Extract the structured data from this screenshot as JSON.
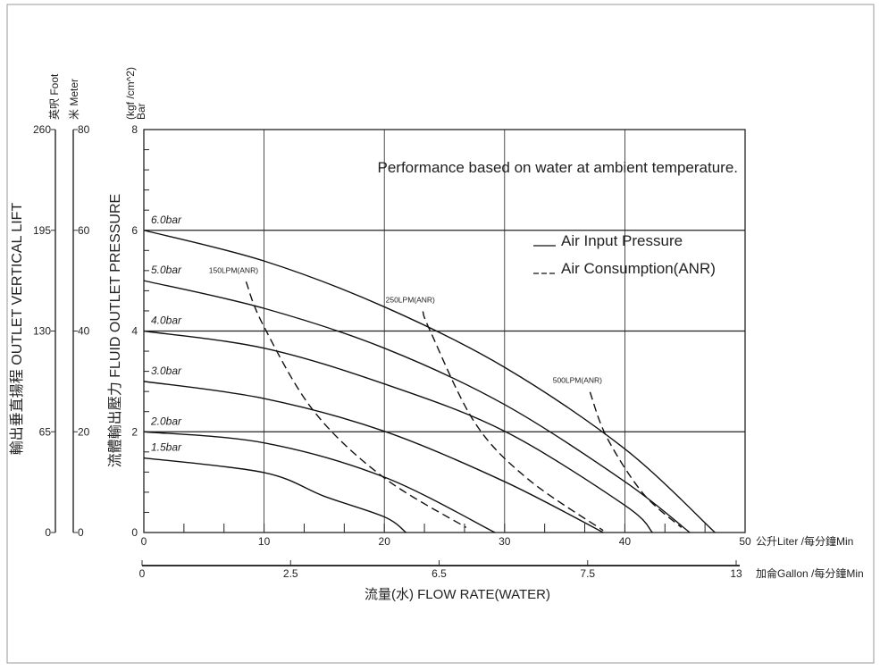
{
  "chart_data": {
    "type": "line",
    "note_text": "Performance based on water at ambient temperature.",
    "y_axis": {
      "label": "流體輸出壓力  FLUID OUTLET PRESSURE",
      "unit_top": "(kgf /cm^2)",
      "unit_bottom": "Bar",
      "range": [
        0,
        8
      ],
      "tick_labels": [
        "0",
        "2",
        "4",
        "6",
        "8"
      ],
      "minor_step": 0.4
    },
    "lift_axis": {
      "label": "輸出垂直揚程   OUTLET VERTICAL LIFT",
      "foot_unit": "英呎 Foot",
      "meter_unit": "米 Meter",
      "foot_ticks": [
        "0",
        "65",
        "130",
        "195",
        "260"
      ],
      "meter_ticks": [
        "0",
        "20",
        "40",
        "60",
        "80"
      ]
    },
    "x_axis": {
      "unit": "公升Liter /每分鐘Min",
      "range": [
        0,
        50
      ],
      "tick_labels": [
        "0",
        "10",
        "20",
        "30",
        "40",
        "50"
      ]
    },
    "gallon_axis": {
      "unit": "加侖Gallon /每分鐘Min",
      "tick_labels": [
        "0",
        "2.5",
        "6.5",
        "7.5",
        "13"
      ]
    },
    "xlabel": "流量(水) FLOW RATE(WATER)",
    "grid": true,
    "legend": {
      "placement": "top-right",
      "items": [
        {
          "name": "Air Input Pressure",
          "style": "solid"
        },
        {
          "name": "Air Consumption(ANR)",
          "style": "dashed"
        }
      ]
    },
    "series": [
      {
        "name": "6.0bar",
        "style": "solid",
        "points": [
          [
            0,
            6.0
          ],
          [
            10,
            5.39
          ],
          [
            20,
            4.48
          ],
          [
            30,
            3.28
          ],
          [
            40,
            1.66
          ],
          [
            47.5,
            0
          ]
        ]
      },
      {
        "name": "5.0bar",
        "style": "solid",
        "points": [
          [
            0,
            5.0
          ],
          [
            10,
            4.45
          ],
          [
            20,
            3.66
          ],
          [
            30,
            2.54
          ],
          [
            40,
            1.01
          ],
          [
            45.4,
            0
          ]
        ]
      },
      {
        "name": "4.0bar",
        "style": "solid",
        "points": [
          [
            0,
            4.0
          ],
          [
            10,
            3.66
          ],
          [
            20,
            2.95
          ],
          [
            30,
            2.01
          ],
          [
            40,
            0.54
          ],
          [
            42.3,
            0
          ]
        ]
      },
      {
        "name": "3.0bar",
        "style": "solid",
        "points": [
          [
            0,
            3.0
          ],
          [
            10,
            2.66
          ],
          [
            20,
            2.01
          ],
          [
            30,
            1.01
          ],
          [
            38.2,
            0
          ]
        ]
      },
      {
        "name": "2.0bar",
        "style": "solid",
        "points": [
          [
            0,
            2.0
          ],
          [
            10,
            1.78
          ],
          [
            20,
            1.1
          ],
          [
            29.2,
            0
          ]
        ]
      },
      {
        "name": "1.5bar",
        "style": "solid",
        "points": [
          [
            0,
            1.48
          ],
          [
            10,
            1.19
          ],
          [
            15,
            0.72
          ],
          [
            20,
            0.31
          ],
          [
            21.8,
            0
          ]
        ]
      },
      {
        "name": "150LPM(ANR)",
        "style": "dashed",
        "points": [
          [
            8.5,
            4.98
          ],
          [
            9.9,
            4.13
          ],
          [
            14.1,
            2.42
          ],
          [
            19.9,
            1.1
          ],
          [
            26.8,
            0.1
          ]
        ]
      },
      {
        "name": "250LPM(ANR)",
        "style": "dashed",
        "points": [
          [
            23.2,
            4.39
          ],
          [
            23.8,
            4.01
          ],
          [
            27.5,
            2.19
          ],
          [
            31.9,
            1.07
          ],
          [
            38.2,
            0.04
          ]
        ]
      },
      {
        "name": "500LPM(ANR)",
        "style": "dashed",
        "points": [
          [
            37.1,
            2.79
          ],
          [
            38.5,
            1.89
          ],
          [
            41.5,
            0.78
          ],
          [
            44.7,
            0.1
          ]
        ]
      }
    ],
    "colors": {
      "line": "#111111",
      "grid": "#222222",
      "frame": "#999999"
    }
  }
}
